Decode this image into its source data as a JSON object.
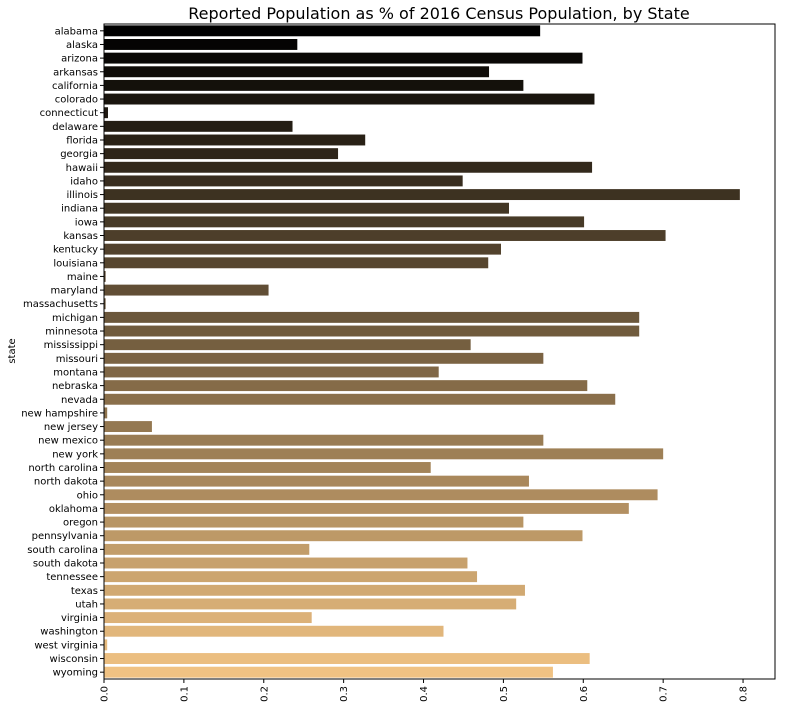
{
  "chart_data": {
    "type": "bar",
    "orientation": "horizontal",
    "title": "Reported Population as % of 2016 Census Population, by State",
    "xlabel": "",
    "ylabel": "state",
    "xlim": [
      0,
      0.84
    ],
    "xticks": [
      "0.0",
      "0.1",
      "0.2",
      "0.3",
      "0.4",
      "0.5",
      "0.6",
      "0.7",
      "0.8"
    ],
    "grid": false,
    "palette": "copper",
    "color_start": "#000000",
    "color_end": "#f0c283",
    "categories": [
      "alabama",
      "alaska",
      "arizona",
      "arkansas",
      "california",
      "colorado",
      "connecticut",
      "delaware",
      "florida",
      "georgia",
      "hawaii",
      "idaho",
      "illinois",
      "indiana",
      "iowa",
      "kansas",
      "kentucky",
      "louisiana",
      "maine",
      "maryland",
      "massachusetts",
      "michigan",
      "minnesota",
      "mississippi",
      "missouri",
      "montana",
      "nebraska",
      "nevada",
      "new hampshire",
      "new jersey",
      "new mexico",
      "new york",
      "north carolina",
      "north dakota",
      "ohio",
      "oklahoma",
      "oregon",
      "pennsylvania",
      "south carolina",
      "south dakota",
      "tennessee",
      "texas",
      "utah",
      "virginia",
      "washington",
      "west virginia",
      "wisconsin",
      "wyoming"
    ],
    "values": [
      0.546,
      0.242,
      0.599,
      0.482,
      0.525,
      0.614,
      0.005,
      0.236,
      0.327,
      0.293,
      0.611,
      0.449,
      0.796,
      0.507,
      0.601,
      0.703,
      0.497,
      0.481,
      0.002,
      0.206,
      0.002,
      0.67,
      0.67,
      0.459,
      0.55,
      0.419,
      0.605,
      0.64,
      0.004,
      0.06,
      0.55,
      0.7,
      0.409,
      0.532,
      0.693,
      0.657,
      0.525,
      0.599,
      0.257,
      0.455,
      0.467,
      0.527,
      0.516,
      0.26,
      0.425,
      0.004,
      0.608,
      0.562
    ]
  }
}
